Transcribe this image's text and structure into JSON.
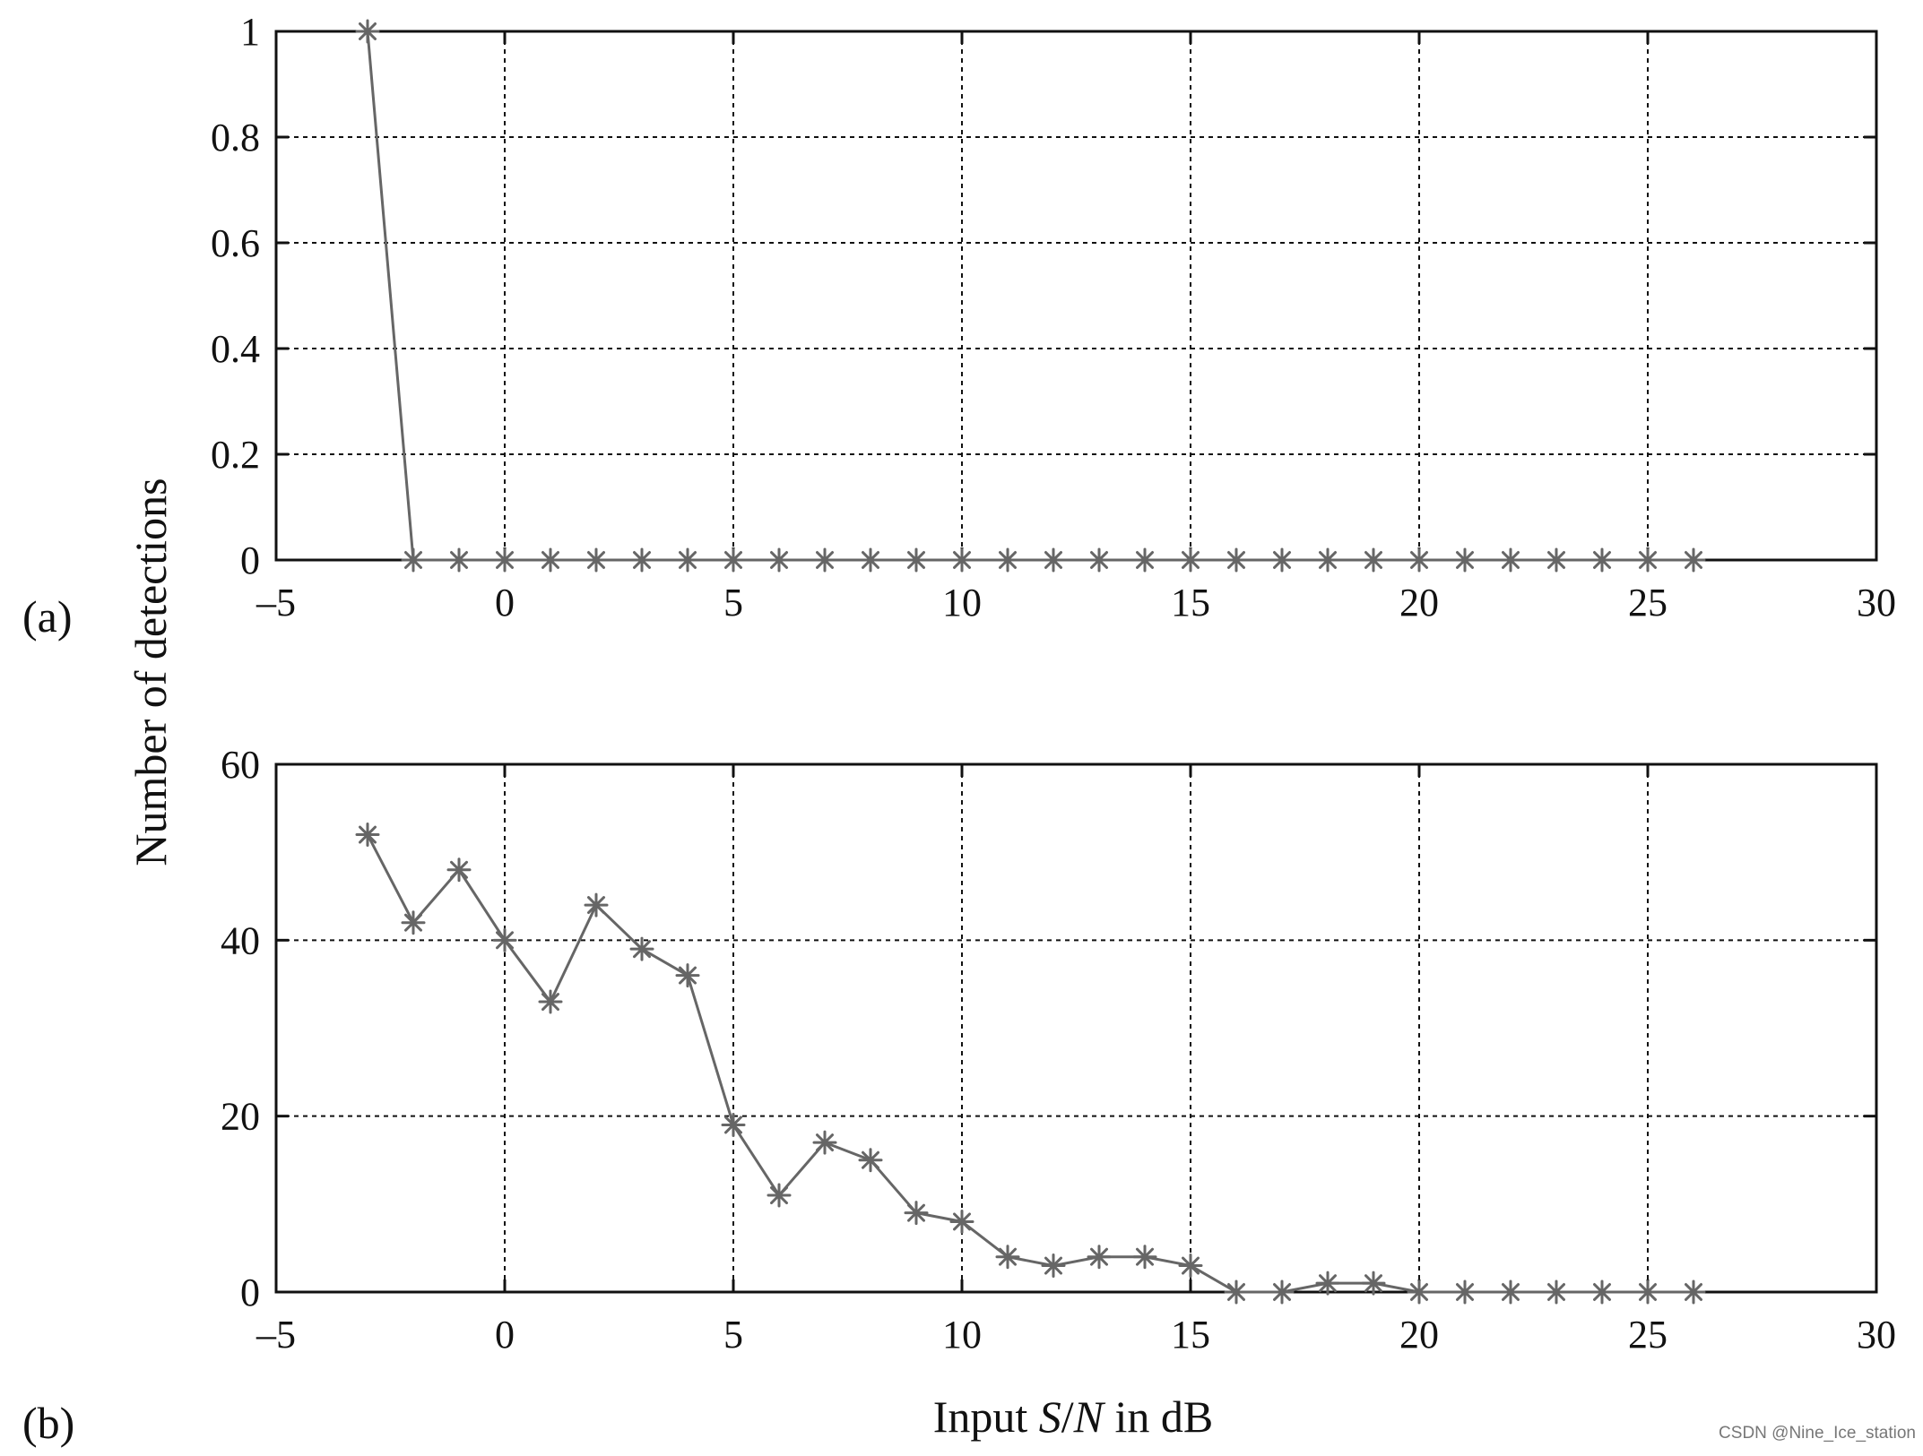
{
  "figure": {
    "ylabel": "Number of detections",
    "xlabel_parts": [
      "Input ",
      "S",
      "/",
      "N",
      " in dB"
    ],
    "watermark": "CSDN @Nine_Ice_station"
  },
  "colors": {
    "series": "#666666",
    "axes": "#111111",
    "grid": "#111111"
  },
  "chart_data": [
    {
      "type": "line",
      "panel_label": "(a)",
      "marker": "asterisk",
      "grid": true,
      "xlim": [
        -5,
        30
      ],
      "ylim": [
        0,
        1
      ],
      "xticks": [
        -5,
        0,
        5,
        10,
        15,
        20,
        25,
        30
      ],
      "yticks": [
        0,
        0.2,
        0.4,
        0.6,
        0.8,
        1
      ],
      "xtick_labels": [
        "–5",
        "0",
        "5",
        "10",
        "15",
        "20",
        "25",
        "30"
      ],
      "ytick_labels": [
        "0",
        "0.2",
        "0.4",
        "0.6",
        "0.8",
        "1"
      ],
      "x": [
        -3,
        -2,
        -1,
        0,
        1,
        2,
        3,
        4,
        5,
        6,
        7,
        8,
        9,
        10,
        11,
        12,
        13,
        14,
        15,
        16,
        17,
        18,
        19,
        20,
        21,
        22,
        23,
        24,
        25,
        26
      ],
      "y": [
        1,
        0,
        0,
        0,
        0,
        0,
        0,
        0,
        0,
        0,
        0,
        0,
        0,
        0,
        0,
        0,
        0,
        0,
        0,
        0,
        0,
        0,
        0,
        0,
        0,
        0,
        0,
        0,
        0,
        0
      ]
    },
    {
      "type": "line",
      "panel_label": "(b)",
      "marker": "asterisk",
      "grid": true,
      "xlim": [
        -5,
        30
      ],
      "ylim": [
        0,
        60
      ],
      "xticks": [
        -5,
        0,
        5,
        10,
        15,
        20,
        25,
        30
      ],
      "yticks": [
        0,
        20,
        40,
        60
      ],
      "xtick_labels": [
        "–5",
        "0",
        "5",
        "10",
        "15",
        "20",
        "25",
        "30"
      ],
      "ytick_labels": [
        "0",
        "20",
        "40",
        "60"
      ],
      "x": [
        -3,
        -2,
        -1,
        0,
        1,
        2,
        3,
        4,
        5,
        6,
        7,
        8,
        9,
        10,
        11,
        12,
        13,
        14,
        15,
        16,
        17,
        18,
        19,
        20,
        21,
        22,
        23,
        24,
        25,
        26
      ],
      "y": [
        52,
        42,
        48,
        40,
        33,
        44,
        39,
        36,
        19,
        11,
        17,
        15,
        9,
        8,
        4,
        3,
        4,
        4,
        3,
        0,
        0,
        1,
        1,
        0,
        0,
        0,
        0,
        0,
        0,
        0
      ]
    }
  ]
}
